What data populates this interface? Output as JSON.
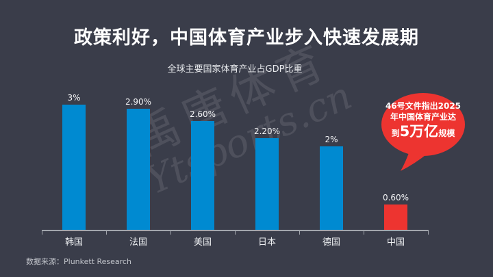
{
  "slide": {
    "title": "政策利好，中国体育产业步入快速发展期",
    "subtitle": "全球主要国家体育产业占GDP比重",
    "source_label": "数据来源：Plunkett Research",
    "watermark": {
      "line1": "禹唐体育",
      "line2": "Ytsports.cn"
    }
  },
  "callout": {
    "line1": "46号文件指出2025",
    "line2": "年中国体育产业达",
    "line3_prefix": "到",
    "line3_highlight": "5万亿",
    "line3_suffix": "规模",
    "color": "#ed3430"
  },
  "chart_data": {
    "type": "bar",
    "title": "全球主要国家体育产业占GDP比重",
    "categories": [
      "韩国",
      "法国",
      "美国",
      "日本",
      "德国",
      "中国"
    ],
    "values": [
      3,
      2.9,
      2.6,
      2.2,
      2,
      0.6
    ],
    "value_labels": [
      "3%",
      "2.90%",
      "2.60%",
      "2.20%",
      "2%",
      "0.60%"
    ],
    "bar_color": "#008ad1",
    "highlight_index": 5,
    "highlight_color": "#ed3430",
    "ylim": [
      0,
      3.3
    ],
    "grid": false,
    "legend": "none",
    "value_labels_position": "above-bars"
  },
  "colors": {
    "background": "#3a3d4a",
    "text": "#ffffff",
    "axis": "#a2a6ad"
  }
}
